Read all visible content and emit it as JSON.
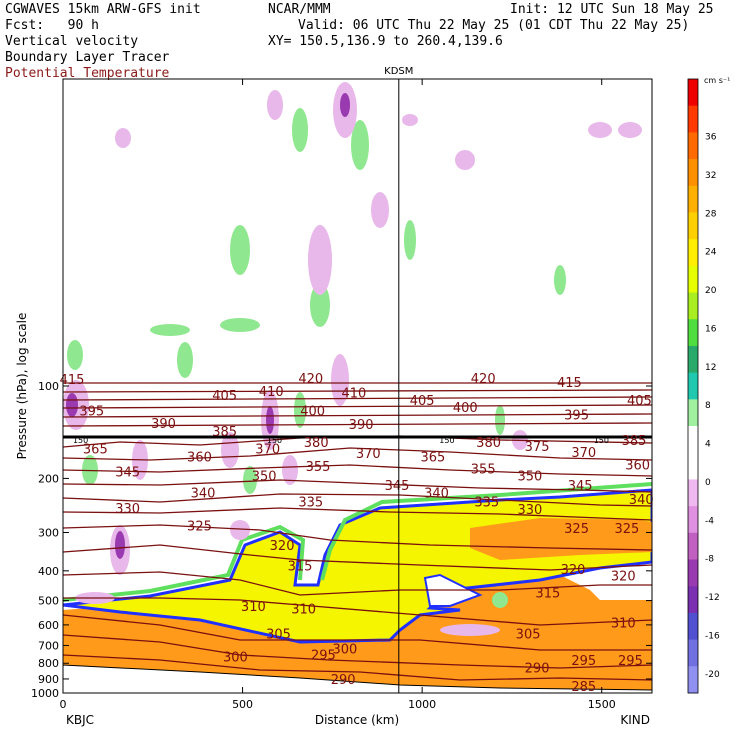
{
  "header": {
    "model": "CGWAVES 15km ARW-GFS init",
    "fcst": "Fcst:   90 h",
    "org": "NCAR/MMM",
    "init": "Init: 12 UTC Sun 18 May 25",
    "valid": "Valid: 06 UTC Thu 22 May 25 (01 CDT Thu 22 May 25)",
    "xy": "XY= 150.5,136.9 to 260.4,139.6",
    "field1": "Vertical velocity",
    "field2": "Boundary Layer Tracer",
    "field3": "Potential Temperature"
  },
  "colors": {
    "theta": "#7a1010",
    "tracer_fill": "#f5f500",
    "orange": "#ff9a1a",
    "purple": "#9a3ab0",
    "green": "#5ee05e",
    "blue": "#2030ff"
  },
  "chart_data": {
    "type": "heatmap",
    "title": "",
    "xlabel": "Distance (km)",
    "ylabel": "Pressure (hPa), log scale",
    "x_ticks": [
      0,
      500,
      1000,
      1500
    ],
    "y_ticks": [
      100,
      200,
      300,
      400,
      500,
      600,
      700,
      800,
      900,
      1000
    ],
    "xlim": [
      0,
      1640
    ],
    "ylim": [
      1000,
      10
    ],
    "y_scale": "log",
    "left_station": "KBJC",
    "right_station": "KIND",
    "mid_station": "KDSM",
    "mid_station_km": 935,
    "tropopause_labels": [
      "150",
      "150",
      "150",
      "150"
    ],
    "colorbar": {
      "unit": "cm s⁻¹",
      "ticks": [
        "36",
        "32",
        "28",
        "24",
        "20",
        "16",
        "12",
        "8",
        "4",
        "0",
        "-4",
        "-8",
        "-12",
        "-16",
        "-20"
      ],
      "colors": [
        "#ee0000",
        "#ff3a00",
        "#ff6a00",
        "#ff9000",
        "#ffb000",
        "#ffd000",
        "#ffee00",
        "#e6ff00",
        "#a8ee20",
        "#50dd40",
        "#2aaa6a",
        "#20c8b0",
        "#a0f0a0",
        "#ffffff",
        "#ffffff",
        "#f0b8f0",
        "#e090e0",
        "#c060c0",
        "#9a3ab0",
        "#7a30b0",
        "#5050d0",
        "#7070e0",
        "#9090f0"
      ]
    },
    "isentrope_labels": [
      {
        "label": "415",
        "x": 25,
        "p": 95
      },
      {
        "label": "420",
        "x": 690,
        "p": 94
      },
      {
        "label": "420",
        "x": 1170,
        "p": 94
      },
      {
        "label": "415",
        "x": 1410,
        "p": 97
      },
      {
        "label": "405",
        "x": 450,
        "p": 107
      },
      {
        "label": "410",
        "x": 580,
        "p": 104
      },
      {
        "label": "410",
        "x": 810,
        "p": 105
      },
      {
        "label": "405",
        "x": 1000,
        "p": 111
      },
      {
        "label": "400",
        "x": 1120,
        "p": 117
      },
      {
        "label": "405",
        "x": 1605,
        "p": 111
      },
      {
        "label": "395",
        "x": 80,
        "p": 120
      },
      {
        "label": "400",
        "x": 695,
        "p": 120
      },
      {
        "label": "395",
        "x": 1430,
        "p": 124
      },
      {
        "label": "390",
        "x": 280,
        "p": 132
      },
      {
        "label": "385",
        "x": 450,
        "p": 140
      },
      {
        "label": "390",
        "x": 830,
        "p": 133
      },
      {
        "label": "385",
        "x": 1590,
        "p": 150
      },
      {
        "label": "370",
        "x": 570,
        "p": 160
      },
      {
        "label": "380",
        "x": 705,
        "p": 152
      },
      {
        "label": "380",
        "x": 1185,
        "p": 152
      },
      {
        "label": "375",
        "x": 1320,
        "p": 157
      },
      {
        "label": "365",
        "x": 90,
        "p": 160
      },
      {
        "label": "360",
        "x": 380,
        "p": 170
      },
      {
        "label": "370",
        "x": 850,
        "p": 165
      },
      {
        "label": "365",
        "x": 1030,
        "p": 170
      },
      {
        "label": "370",
        "x": 1450,
        "p": 164
      },
      {
        "label": "360",
        "x": 1600,
        "p": 180
      },
      {
        "label": "345",
        "x": 180,
        "p": 190
      },
      {
        "label": "355",
        "x": 710,
        "p": 182
      },
      {
        "label": "355",
        "x": 1170,
        "p": 186
      },
      {
        "label": "350",
        "x": 560,
        "p": 196
      },
      {
        "label": "350",
        "x": 1300,
        "p": 196
      },
      {
        "label": "345",
        "x": 930,
        "p": 210
      },
      {
        "label": "345",
        "x": 1440,
        "p": 210
      },
      {
        "label": "340",
        "x": 390,
        "p": 222
      },
      {
        "label": "340",
        "x": 1040,
        "p": 222
      },
      {
        "label": "340",
        "x": 1610,
        "p": 233
      },
      {
        "label": "330",
        "x": 180,
        "p": 250
      },
      {
        "label": "335",
        "x": 690,
        "p": 238
      },
      {
        "label": "335",
        "x": 1180,
        "p": 238
      },
      {
        "label": "330",
        "x": 1300,
        "p": 252
      },
      {
        "label": "325",
        "x": 380,
        "p": 285
      },
      {
        "label": "325",
        "x": 1430,
        "p": 290
      },
      {
        "label": "325",
        "x": 1570,
        "p": 290
      },
      {
        "label": "320",
        "x": 610,
        "p": 330
      },
      {
        "label": "320",
        "x": 1420,
        "p": 395
      },
      {
        "label": "320",
        "x": 1560,
        "p": 415
      },
      {
        "label": "315",
        "x": 660,
        "p": 385
      },
      {
        "label": "315",
        "x": 1350,
        "p": 470
      },
      {
        "label": "310",
        "x": 530,
        "p": 520
      },
      {
        "label": "310",
        "x": 670,
        "p": 530
      },
      {
        "label": "310",
        "x": 1560,
        "p": 590
      },
      {
        "label": "305",
        "x": 600,
        "p": 640
      },
      {
        "label": "305",
        "x": 1295,
        "p": 640
      },
      {
        "label": "300",
        "x": 480,
        "p": 760
      },
      {
        "label": "300",
        "x": 785,
        "p": 715
      },
      {
        "label": "295",
        "x": 725,
        "p": 750
      },
      {
        "label": "295",
        "x": 1450,
        "p": 780
      },
      {
        "label": "295",
        "x": 1580,
        "p": 780
      },
      {
        "label": "290",
        "x": 780,
        "p": 900
      },
      {
        "label": "290",
        "x": 1320,
        "p": 825
      },
      {
        "label": "285",
        "x": 1450,
        "p": 950
      }
    ]
  }
}
